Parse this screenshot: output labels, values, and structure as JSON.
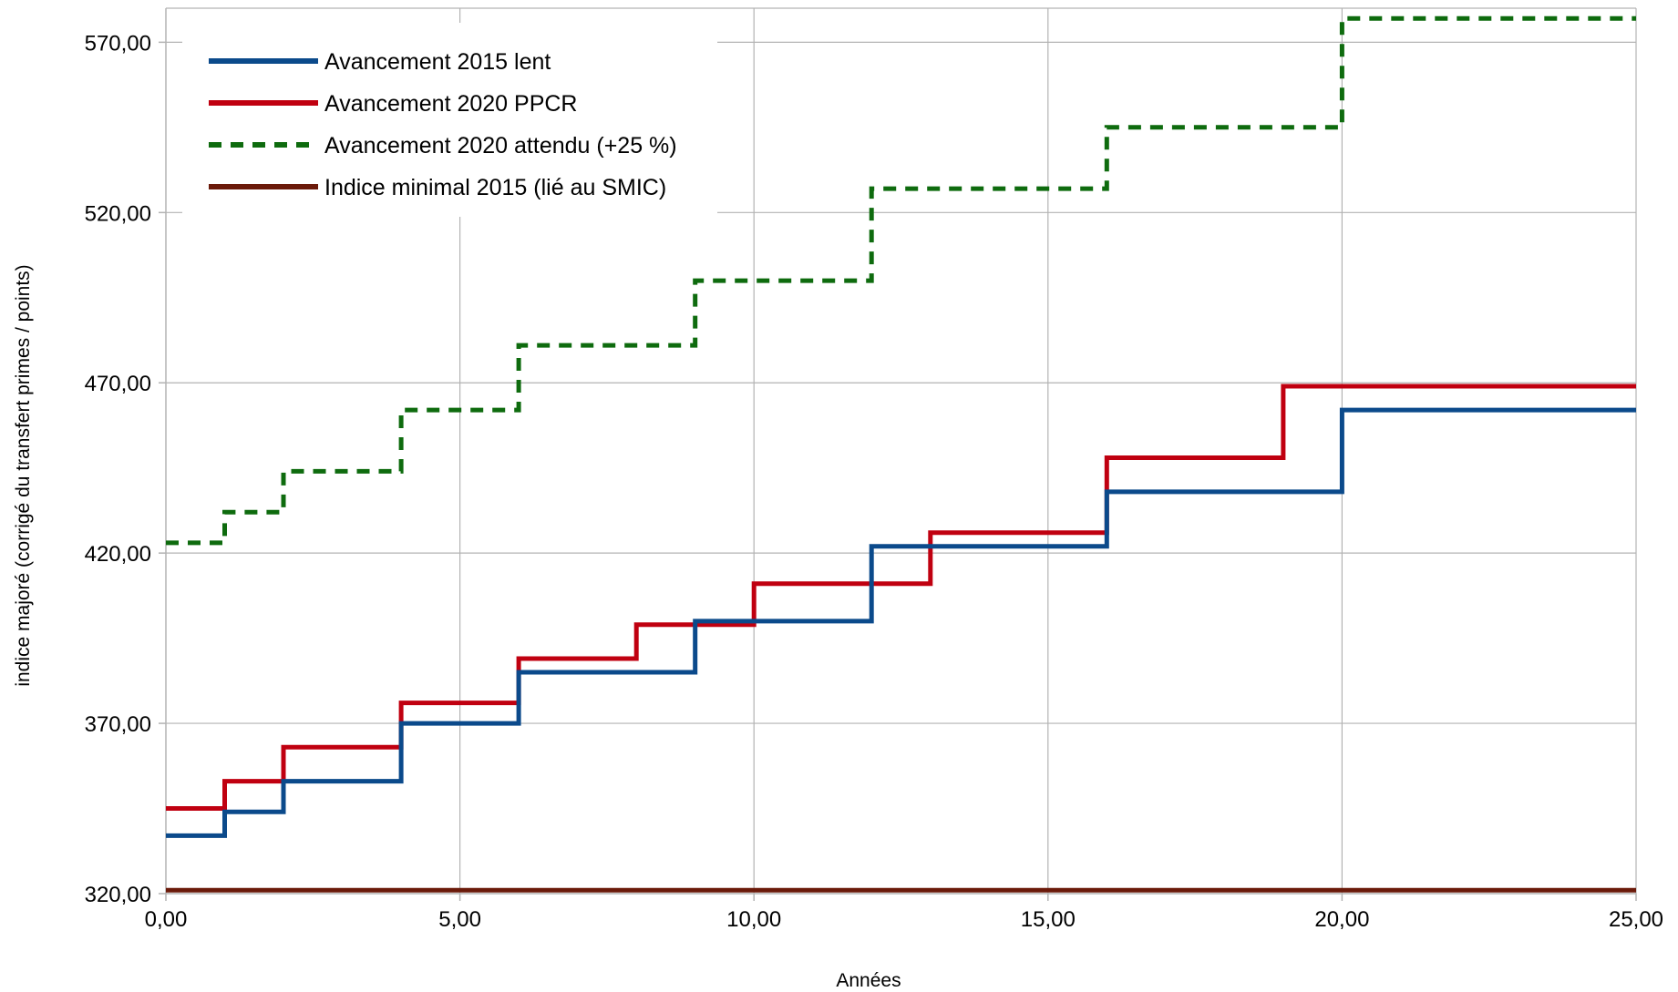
{
  "chart_data": {
    "type": "line",
    "step": true,
    "xlabel": "Années",
    "ylabel": "indice majoré (corrigé du transfert primes / points)",
    "xlim": [
      0,
      25
    ],
    "ylim": [
      320,
      580
    ],
    "xticks": [
      0,
      5,
      10,
      15,
      20,
      25
    ],
    "yticks": [
      320,
      370,
      420,
      470,
      520,
      570
    ],
    "xtick_labels": [
      "0,00",
      "5,00",
      "10,00",
      "15,00",
      "20,00",
      "25,00"
    ],
    "ytick_labels": [
      "320,00",
      "370,00",
      "420,00",
      "470,00",
      "520,00",
      "570,00"
    ],
    "grid": true,
    "legend_position": "top-left",
    "series": [
      {
        "name": "Avancement 2015 lent",
        "color": "#0b4a8b",
        "dash": "solid",
        "x": [
          0,
          1,
          2,
          4,
          6,
          9,
          12,
          16,
          20,
          25
        ],
        "y": [
          337,
          344,
          353,
          370,
          385,
          400,
          422,
          438,
          462,
          462
        ]
      },
      {
        "name": "Avancement 2020 PPCR",
        "color": "#c00010",
        "dash": "solid",
        "x": [
          0,
          1,
          2,
          4,
          6,
          8,
          10,
          13,
          16,
          19,
          25
        ],
        "y": [
          345,
          353,
          363,
          376,
          389,
          399,
          411,
          426,
          448,
          469,
          469
        ]
      },
      {
        "name": "Avancement 2020 attendu (+25 %)",
        "color": "#0e6b0e",
        "dash": "dashed",
        "x": [
          0,
          1,
          2,
          4,
          6,
          9,
          12,
          16,
          20,
          25
        ],
        "y": [
          423,
          432,
          444,
          462,
          481,
          500,
          527,
          545,
          577,
          577
        ]
      },
      {
        "name": "Indice minimal 2015 (lié au SMIC)",
        "color": "#6b1a0a",
        "dash": "solid",
        "x": [
          0,
          25
        ],
        "y": [
          321,
          321
        ]
      }
    ]
  }
}
